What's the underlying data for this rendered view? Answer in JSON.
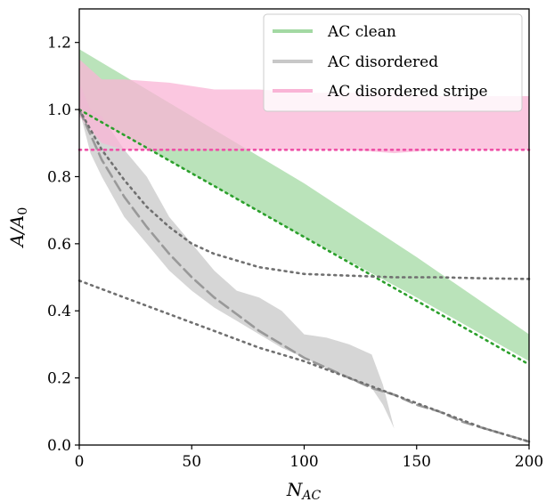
{
  "chart_data": {
    "type": "area",
    "xlabel": "N_AC",
    "ylabel": "A/A_0",
    "xlim": [
      0,
      200
    ],
    "ylim": [
      0,
      1.3
    ],
    "x_ticks": [
      0,
      50,
      100,
      150,
      200
    ],
    "y_ticks": [
      0.0,
      0.2,
      0.4,
      0.6,
      0.8,
      1.0,
      1.2
    ],
    "x_tick_labels": [
      "0",
      "50",
      "100",
      "150",
      "200"
    ],
    "y_tick_labels": [
      "0.0",
      "0.2",
      "0.4",
      "0.6",
      "0.8",
      "1.0",
      "1.2"
    ],
    "grid": false,
    "legend_position": "top-right",
    "series": [
      {
        "name": "AC clean",
        "color": "#a3d9a3",
        "band": {
          "x": [
            0,
            50,
            100,
            150,
            200
          ],
          "lower": [
            1.0,
            0.81,
            0.62,
            0.44,
            0.25
          ],
          "upper": [
            1.18,
            0.98,
            0.78,
            0.56,
            0.33
          ]
        }
      },
      {
        "name": "AC disordered",
        "color": "#c8c8c8",
        "band": {
          "x": [
            0,
            5,
            10,
            20,
            30,
            40,
            50,
            60,
            70,
            80,
            90,
            100,
            110,
            120,
            130,
            135,
            140,
            142
          ],
          "lower": [
            1.0,
            0.87,
            0.8,
            0.68,
            0.6,
            0.52,
            0.46,
            0.41,
            0.37,
            0.33,
            0.29,
            0.26,
            0.23,
            0.2,
            0.17,
            0.12,
            0.05,
            0.0
          ],
          "upper": [
            1.08,
            1.0,
            0.98,
            0.88,
            0.8,
            0.68,
            0.6,
            0.52,
            0.46,
            0.44,
            0.4,
            0.33,
            0.32,
            0.3,
            0.27,
            0.18,
            0.05,
            0.0
          ]
        }
      },
      {
        "name": "AC disordered stripe",
        "color": "#f9b4d6",
        "band": {
          "x": [
            0,
            10,
            20,
            40,
            60,
            80,
            100,
            120,
            140,
            160,
            180,
            200
          ],
          "lower": [
            0.98,
            0.9,
            0.88,
            0.88,
            0.88,
            0.88,
            0.88,
            0.88,
            0.87,
            0.88,
            0.88,
            0.88
          ],
          "upper": [
            1.15,
            1.09,
            1.09,
            1.08,
            1.06,
            1.06,
            1.05,
            1.05,
            1.05,
            1.04,
            1.04,
            1.04
          ]
        }
      }
    ],
    "reference_lines": [
      {
        "style": "dotted",
        "color": "#2ca02c",
        "x": [
          0,
          100,
          200
        ],
        "y": [
          1.0,
          0.62,
          0.24
        ]
      },
      {
        "style": "dotted",
        "color": "#ee4fa6",
        "x": [
          0,
          200
        ],
        "y": [
          0.88,
          0.88
        ]
      },
      {
        "style": "dashed",
        "color": "#999999",
        "x": [
          0,
          10,
          20,
          30,
          40,
          50,
          60,
          70,
          80,
          90,
          100,
          110,
          120,
          130,
          140,
          150,
          160,
          170,
          180,
          190,
          200
        ],
        "y": [
          1.0,
          0.85,
          0.74,
          0.65,
          0.57,
          0.5,
          0.44,
          0.39,
          0.34,
          0.3,
          0.26,
          0.23,
          0.2,
          0.17,
          0.15,
          0.12,
          0.1,
          0.07,
          0.05,
          0.03,
          0.01
        ]
      },
      {
        "style": "dotted",
        "color": "#707070",
        "x": [
          0,
          10,
          20,
          30,
          40,
          50,
          60,
          70,
          80,
          90,
          100,
          120,
          140,
          160,
          180,
          200
        ],
        "y": [
          1.0,
          0.88,
          0.79,
          0.71,
          0.65,
          0.6,
          0.57,
          0.55,
          0.53,
          0.52,
          0.51,
          0.505,
          0.5,
          0.5,
          0.497,
          0.495
        ]
      },
      {
        "style": "dotted",
        "color": "#707070",
        "x": [
          0,
          20,
          40,
          60,
          80,
          100,
          120,
          140,
          160,
          180,
          200
        ],
        "y": [
          0.49,
          0.44,
          0.39,
          0.34,
          0.29,
          0.25,
          0.2,
          0.15,
          0.1,
          0.05,
          0.01
        ]
      }
    ]
  }
}
